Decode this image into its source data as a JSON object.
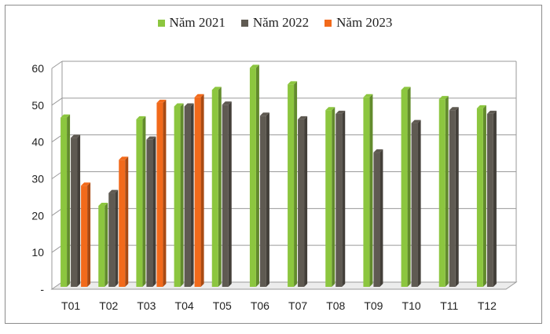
{
  "chart_data": {
    "type": "bar",
    "title": "",
    "xlabel": "",
    "ylabel": "",
    "categories": [
      "T01",
      "T02",
      "T03",
      "T04",
      "T05",
      "T06",
      "T07",
      "T08",
      "T09",
      "T10",
      "T11",
      "T12"
    ],
    "series": [
      {
        "name": "Năm 2021",
        "color": "#8cc63f",
        "values": [
          46,
          22,
          45.5,
          49,
          53.5,
          59.5,
          55,
          48,
          51.5,
          53.5,
          51,
          48.5
        ]
      },
      {
        "name": "Năm 2022",
        "color": "#5f5a52",
        "values": [
          40.5,
          25.5,
          40,
          49,
          49.5,
          46.5,
          45.5,
          47,
          36.5,
          44.5,
          48,
          47
        ]
      },
      {
        "name": "Năm 2023",
        "color": "#f26a1b",
        "values": [
          27.5,
          34.5,
          50,
          51.5,
          null,
          null,
          null,
          null,
          null,
          null,
          null,
          null
        ]
      }
    ],
    "ylim": [
      0,
      60
    ],
    "yticks": [
      "-",
      "10",
      "20",
      "30",
      "40",
      "50",
      "60"
    ],
    "grid": true,
    "legend": "top-center"
  }
}
